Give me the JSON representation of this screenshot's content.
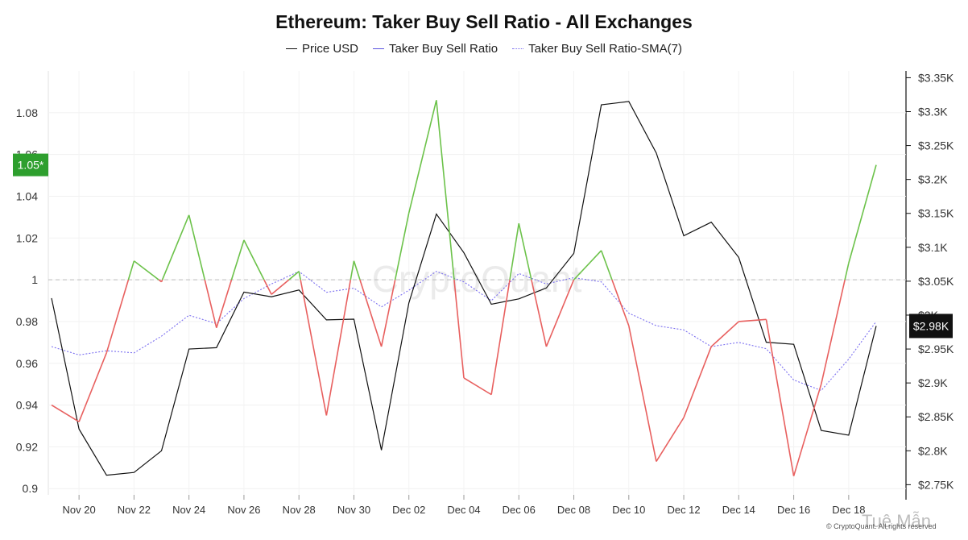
{
  "chart_data": {
    "type": "line",
    "title": "Ethereum: Taker Buy Sell Ratio - All Exchanges",
    "categories": [
      "Nov 19",
      "Nov 20",
      "Nov 21",
      "Nov 22",
      "Nov 23",
      "Nov 24",
      "Nov 25",
      "Nov 26",
      "Nov 27",
      "Nov 28",
      "Nov 29",
      "Nov 30",
      "Dec 01",
      "Dec 02",
      "Dec 03",
      "Dec 04",
      "Dec 05",
      "Dec 06",
      "Dec 07",
      "Dec 08",
      "Dec 09",
      "Dec 10",
      "Dec 11",
      "Dec 12",
      "Dec 13",
      "Dec 14",
      "Dec 15",
      "Dec 16",
      "Dec 17",
      "Dec 18",
      "Dec 19"
    ],
    "x_tick_labels": [
      "Nov 20",
      "Nov 22",
      "Nov 24",
      "Nov 26",
      "Nov 28",
      "Nov 30",
      "Dec 02",
      "Dec 04",
      "Dec 06",
      "Dec 08",
      "Dec 10",
      "Dec 12",
      "Dec 14",
      "Dec 16",
      "Dec 18"
    ],
    "series": [
      {
        "name": "Taker Buy Sell Ratio",
        "axis": "left",
        "threshold": 1,
        "color_above": "#6cc24a",
        "color_below": "#e8605f",
        "legend_color": "#5b54e0",
        "values": [
          0.94,
          0.932,
          0.965,
          1.009,
          0.999,
          1.031,
          0.977,
          1.019,
          0.993,
          1.004,
          0.935,
          1.009,
          0.968,
          1.032,
          1.086,
          0.953,
          0.945,
          1.027,
          0.968,
          1.0,
          1.014,
          0.978,
          0.913,
          0.934,
          0.968,
          0.98,
          0.981,
          0.906,
          0.95,
          1.008,
          1.055
        ]
      },
      {
        "name": "Taker Buy Sell Ratio-SMA(7)",
        "axis": "left",
        "color": "#7b6ff0",
        "style": "dotted",
        "values": [
          0.968,
          0.964,
          0.966,
          0.965,
          0.973,
          0.983,
          0.979,
          0.991,
          0.998,
          1.004,
          0.994,
          0.996,
          0.987,
          0.995,
          1.004,
          0.999,
          0.99,
          1.003,
          0.998,
          1.001,
          0.999,
          0.984,
          0.978,
          0.976,
          0.968,
          0.97,
          0.967,
          0.952,
          0.947,
          0.962,
          0.98
        ]
      },
      {
        "name": "Price USD",
        "axis": "right",
        "color": "#111111",
        "values": [
          3025,
          2832,
          2764,
          2768,
          2800,
          2950,
          2952,
          3034,
          3027,
          3037,
          2993,
          2994,
          2801,
          3018,
          3149,
          3092,
          3016,
          3024,
          3040,
          3091,
          3310,
          3315,
          3239,
          3117,
          3137,
          3085,
          2960,
          2957,
          2830,
          2823,
          2984
        ]
      }
    ],
    "left_axis": {
      "ylim": [
        0.897,
        1.1
      ],
      "ticks": [
        0.9,
        0.92,
        0.94,
        0.96,
        0.98,
        1,
        1.02,
        1.04,
        1.06,
        1.08
      ],
      "tick_labels": [
        "0.9",
        "0.92",
        "0.94",
        "0.96",
        "0.98",
        "1",
        "1.02",
        "1.04",
        "1.06",
        "1.08"
      ],
      "reference_line": 1
    },
    "right_axis": {
      "ylim": [
        2735,
        3360
      ],
      "ticks": [
        2750,
        2800,
        2850,
        2900,
        2950,
        3000,
        3050,
        3100,
        3150,
        3200,
        3250,
        3300,
        3350
      ],
      "tick_labels": [
        "$2.75K",
        "$2.8K",
        "$2.85K",
        "$2.9K",
        "$2.95K",
        "$3K",
        "$3.05K",
        "$3.1K",
        "$3.15K",
        "$3.2K",
        "$3.25K",
        "$3.3K",
        "$3.35K"
      ]
    },
    "left_value_badge": {
      "text": "1.05*",
      "value": 1.055,
      "color": "#2e9f2e"
    },
    "right_value_badge": {
      "text": "$2.98K",
      "value": 2984,
      "color": "#111111"
    },
    "grid": true,
    "legend_position": "top-center"
  },
  "legend": [
    {
      "label": "Price USD",
      "color": "#111111",
      "style": "solid"
    },
    {
      "label": "Taker Buy Sell Ratio",
      "color": "#5b54e0",
      "style": "solid"
    },
    {
      "label": "Taker Buy Sell Ratio-SMA(7)",
      "color": "#7b6ff0",
      "style": "dotted"
    }
  ],
  "watermark": "CryptoQuant",
  "watermark_corner": "Tuệ Mẫn",
  "credit": "© CryptoQuant. All rights reserved"
}
